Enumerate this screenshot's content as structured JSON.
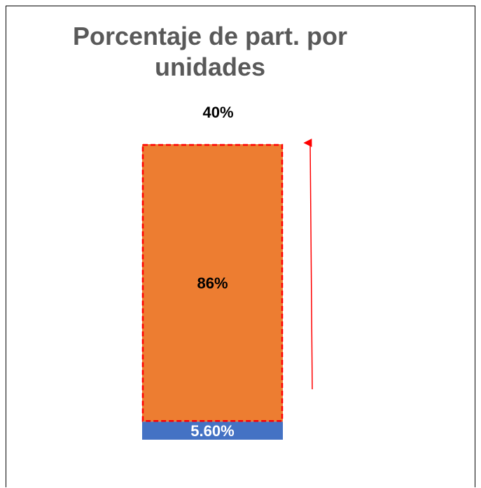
{
  "chart_data": {
    "type": "stacked-bar",
    "title": "Porcentaje de part. por unidades",
    "categories": [
      null
    ],
    "series": [
      {
        "color": "#4472c4",
        "values": [
          5.6
        ],
        "value_labels": [
          "5.60%"
        ]
      },
      {
        "color": "#ed7d31",
        "values": [
          86
        ],
        "value_labels": [
          "86%"
        ]
      }
    ],
    "annotation": "40%"
  }
}
